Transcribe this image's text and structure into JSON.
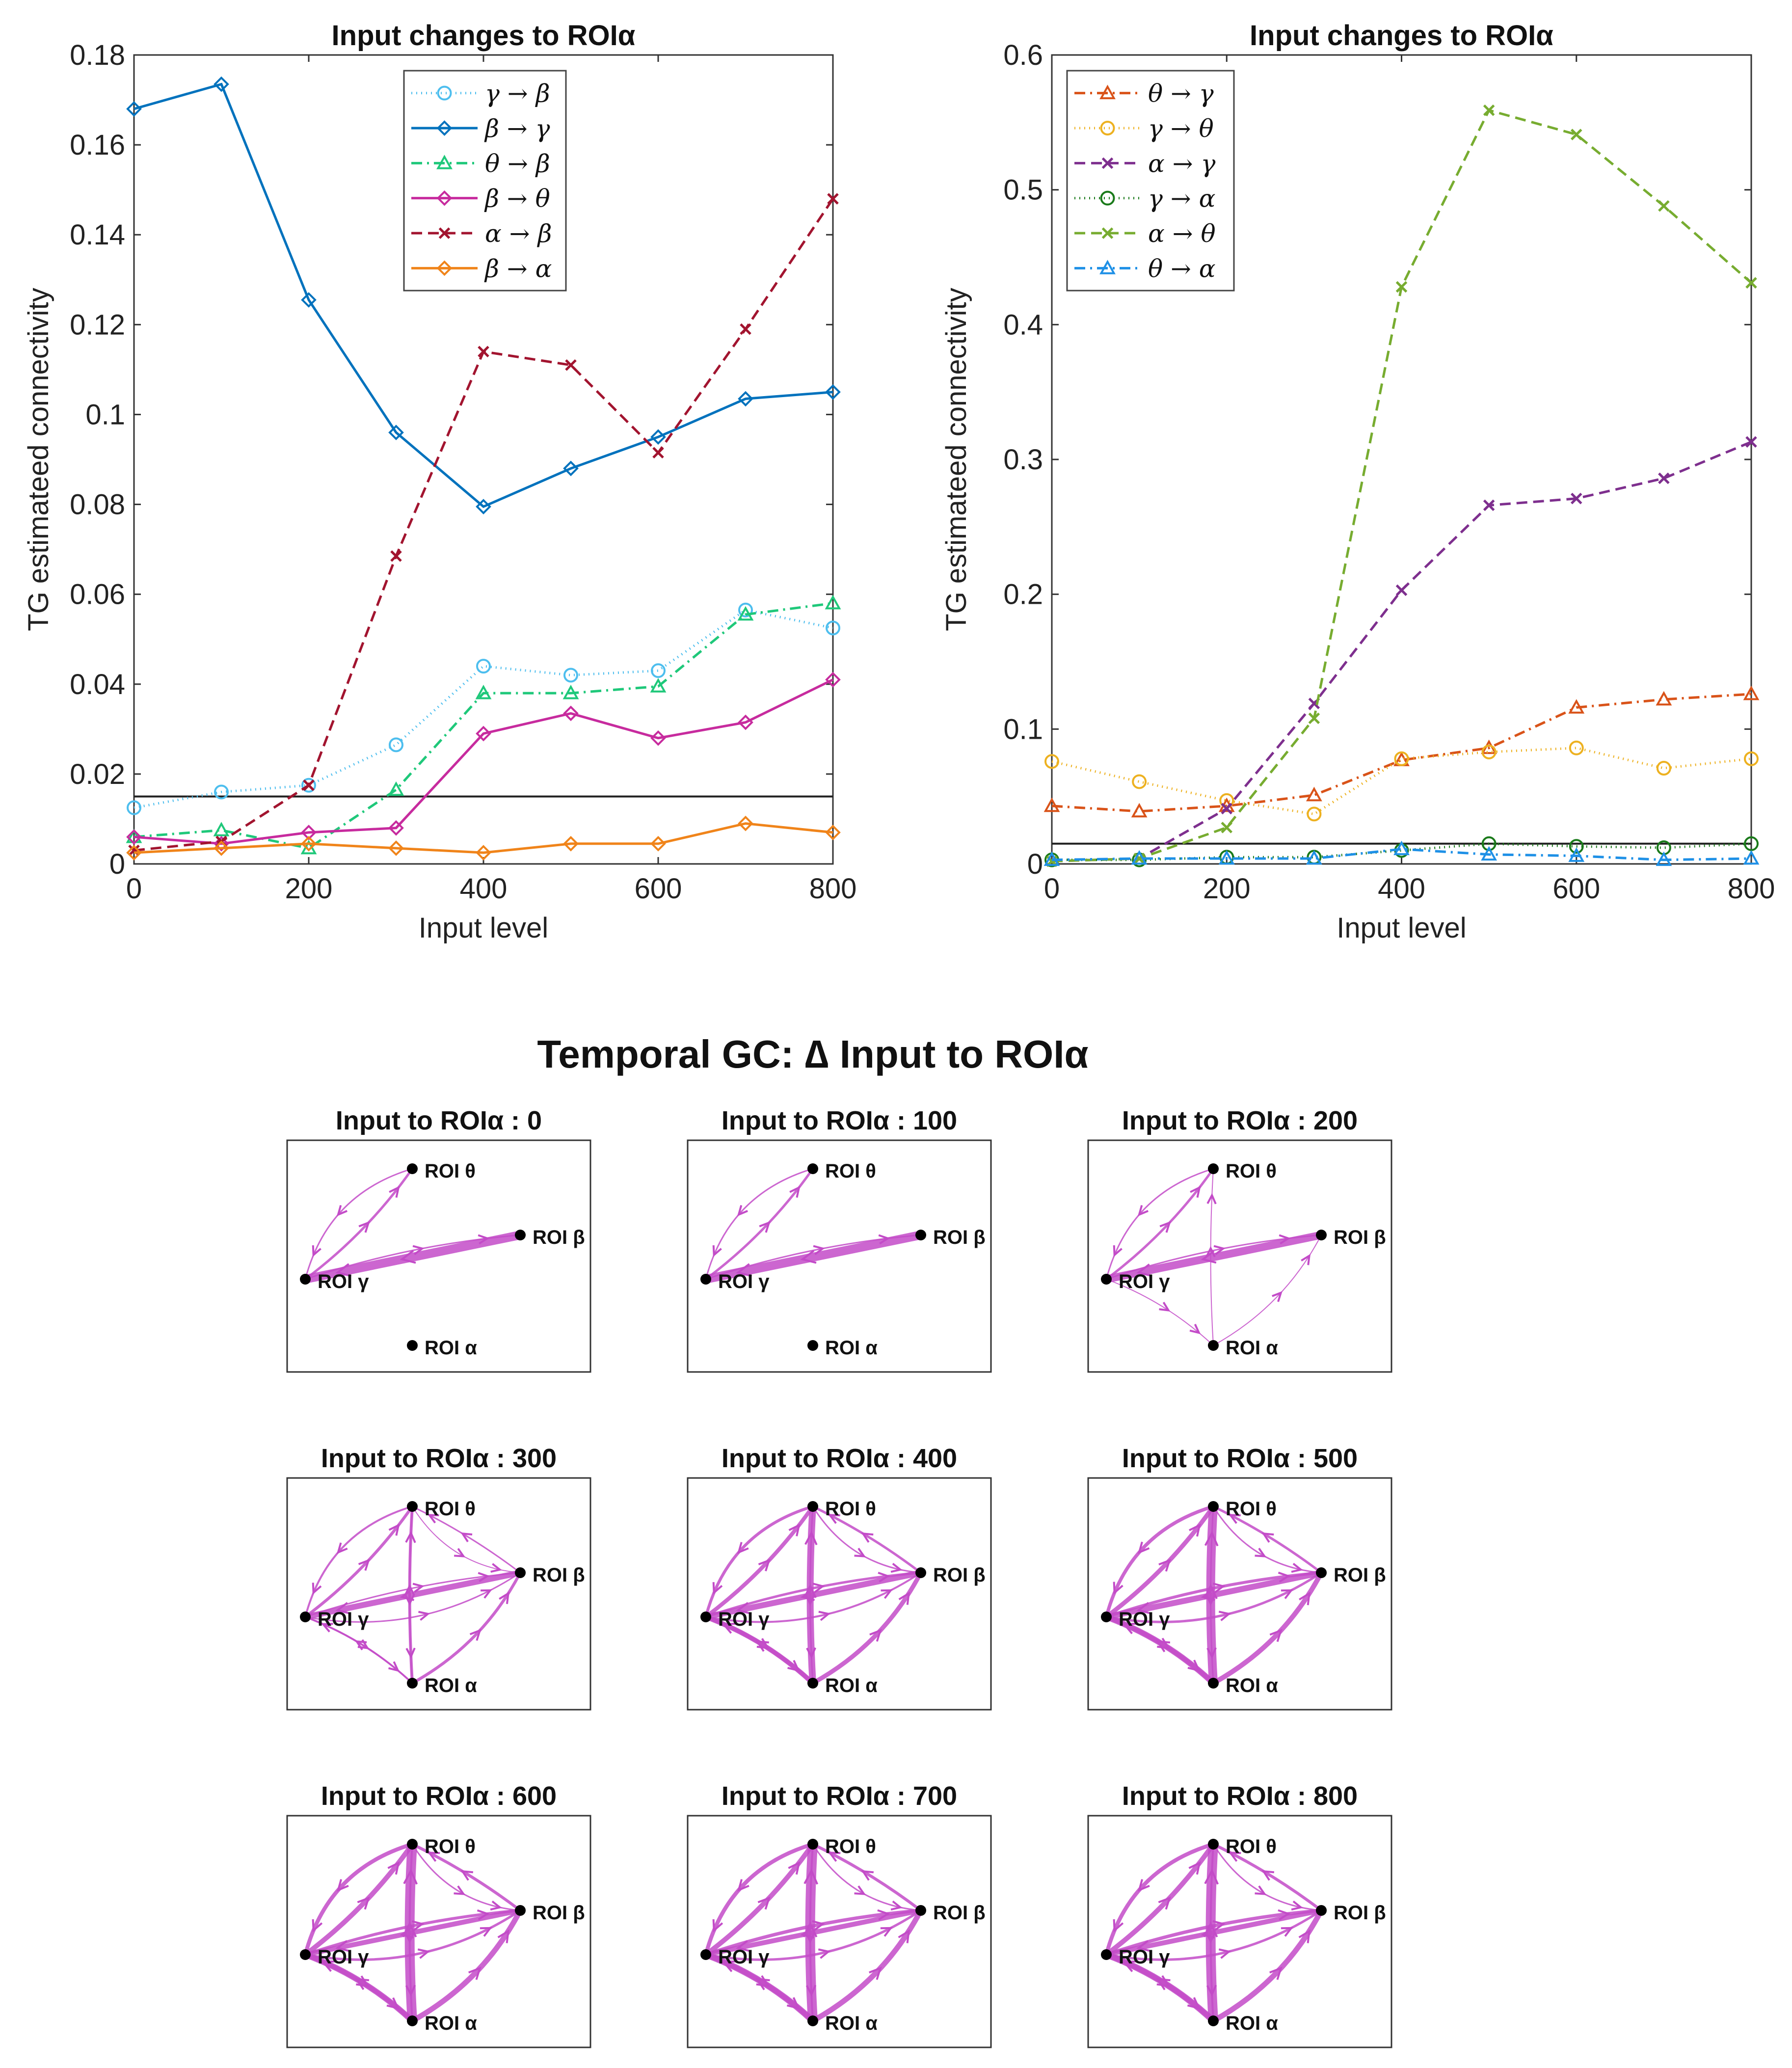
{
  "chart_data": [
    {
      "type": "line",
      "title": "Input changes to ROIα",
      "xlabel": "Input level",
      "ylabel": "TG estimateed connectivity",
      "x": [
        0,
        100,
        200,
        300,
        400,
        500,
        600,
        700,
        800
      ],
      "xlim": [
        0,
        800
      ],
      "ylim": [
        0,
        0.18
      ],
      "xticks": [
        "0",
        "200",
        "400",
        "600",
        "800"
      ],
      "yticks": [
        "0",
        "0.02",
        "0.04",
        "0.06",
        "0.08",
        "0.1",
        "0.12",
        "0.14",
        "0.16",
        "0.18"
      ],
      "threshold": 0.015,
      "legend_position": "top-center",
      "series": [
        {
          "name": "γ → β",
          "color": "#4dbeee",
          "dash": "dotted",
          "marker": "circle",
          "values": [
            0.0125,
            0.016,
            0.0175,
            0.0265,
            0.044,
            0.042,
            0.043,
            0.0565,
            0.0525
          ]
        },
        {
          "name": "β → γ",
          "color": "#0072bd",
          "dash": "solid",
          "marker": "diamond",
          "values": [
            0.168,
            0.1735,
            0.1255,
            0.096,
            0.0795,
            0.088,
            0.095,
            0.1035,
            0.105
          ]
        },
        {
          "name": "θ → β",
          "color": "#1fc87a",
          "dash": "dashdot",
          "marker": "triangle",
          "values": [
            0.006,
            0.0075,
            0.0035,
            0.0165,
            0.038,
            0.038,
            0.0395,
            0.0555,
            0.058
          ]
        },
        {
          "name": "β → θ",
          "color": "#c72b9e",
          "dash": "solid",
          "marker": "diamond",
          "values": [
            0.006,
            0.0045,
            0.007,
            0.008,
            0.029,
            0.0335,
            0.028,
            0.0315,
            0.041
          ]
        },
        {
          "name": "α → β",
          "color": "#a2142f",
          "dash": "dashed",
          "marker": "x",
          "values": [
            0.003,
            0.005,
            0.0175,
            0.0685,
            0.114,
            0.111,
            0.0915,
            0.119,
            0.148
          ]
        },
        {
          "name": "β → α",
          "color": "#f0841a",
          "dash": "solid",
          "marker": "diamond",
          "values": [
            0.0025,
            0.0035,
            0.0045,
            0.0035,
            0.0025,
            0.0045,
            0.0045,
            0.009,
            0.007
          ]
        }
      ]
    },
    {
      "type": "line",
      "title": "Input changes to ROIα",
      "xlabel": "Input level",
      "ylabel": "TG estimateed connectivity",
      "x": [
        0,
        100,
        200,
        300,
        400,
        500,
        600,
        700,
        800
      ],
      "xlim": [
        0,
        800
      ],
      "ylim": [
        0,
        0.6
      ],
      "xticks": [
        "0",
        "200",
        "400",
        "600",
        "800"
      ],
      "yticks": [
        "0",
        "0.1",
        "0.2",
        "0.3",
        "0.4",
        "0.5",
        "0.6"
      ],
      "threshold": 0.015,
      "legend_position": "top-left",
      "series": [
        {
          "name": "θ → γ",
          "color": "#d95319",
          "dash": "dashdot",
          "marker": "triangle",
          "values": [
            0.043,
            0.039,
            0.043,
            0.051,
            0.077,
            0.086,
            0.116,
            0.122,
            0.126
          ]
        },
        {
          "name": "γ → θ",
          "color": "#edb120",
          "dash": "dotted",
          "marker": "circle",
          "values": [
            0.076,
            0.061,
            0.047,
            0.037,
            0.078,
            0.083,
            0.086,
            0.071,
            0.078
          ]
        },
        {
          "name": "α → γ",
          "color": "#7e2f8e",
          "dash": "dashed",
          "marker": "x",
          "values": [
            0.002,
            0.004,
            0.041,
            0.119,
            0.203,
            0.266,
            0.271,
            0.286,
            0.313
          ]
        },
        {
          "name": "γ → α",
          "color": "#1a7a1a",
          "dash": "dotted",
          "marker": "circle",
          "values": [
            0.003,
            0.003,
            0.005,
            0.005,
            0.01,
            0.015,
            0.013,
            0.012,
            0.015
          ]
        },
        {
          "name": "α → θ",
          "color": "#77ac30",
          "dash": "dashed",
          "marker": "x",
          "values": [
            0.002,
            0.004,
            0.027,
            0.108,
            0.428,
            0.559,
            0.541,
            0.488,
            0.431
          ]
        },
        {
          "name": "θ → α",
          "color": "#1e90e6",
          "dash": "dashdot",
          "marker": "triangle",
          "values": [
            0.003,
            0.004,
            0.004,
            0.004,
            0.011,
            0.007,
            0.006,
            0.003,
            0.004
          ]
        }
      ]
    },
    {
      "type": "network",
      "title": "Temporal GC: ∆ Input to ROIα",
      "nodes": [
        "ROI θ",
        "ROI β",
        "ROI γ",
        "ROI α"
      ],
      "panels": [
        {
          "title": "Input to ROIα : 0",
          "input": 0
        },
        {
          "title": "Input to ROIα : 100",
          "input": 100
        },
        {
          "title": "Input to ROIα : 200",
          "input": 200
        },
        {
          "title": "Input to ROIα : 300",
          "input": 300
        },
        {
          "title": "Input to ROIα : 400",
          "input": 400
        },
        {
          "title": "Input to ROIα : 500",
          "input": 500
        },
        {
          "title": "Input to ROIα : 600",
          "input": 600
        },
        {
          "title": "Input to ROIα : 700",
          "input": 700
        },
        {
          "title": "Input to ROIα : 800",
          "input": 800
        }
      ]
    }
  ]
}
